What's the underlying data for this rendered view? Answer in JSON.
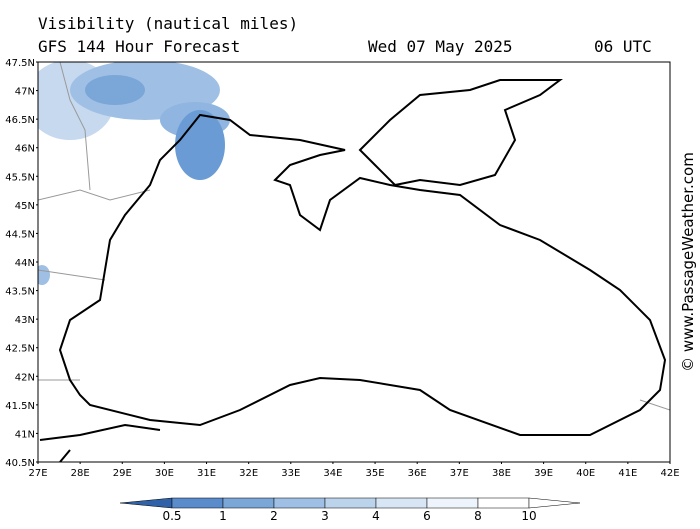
{
  "header": {
    "title": "Visibility (nautical miles)",
    "subtitle": "GFS 144 Hour Forecast",
    "date": "Wed 07 May 2025",
    "time": "06 UTC"
  },
  "map": {
    "lat_labels": [
      "47.5N",
      "47N",
      "46.5N",
      "46N",
      "45.5N",
      "45N",
      "44.5N",
      "44N",
      "43.5N",
      "43N",
      "42.5N",
      "42N",
      "41.5N",
      "41N",
      "40.5N"
    ],
    "lon_labels": [
      "27E",
      "28E",
      "29E",
      "30E",
      "31E",
      "32E",
      "33E",
      "34E",
      "35E",
      "36E",
      "37E",
      "38E",
      "39E",
      "40E",
      "41E",
      "42E"
    ]
  },
  "colorbar": {
    "labels": [
      "0.5",
      "1",
      "2",
      "3",
      "4",
      "6",
      "8",
      "10"
    ]
  },
  "watermark": "© www.PassageWeather.com"
}
